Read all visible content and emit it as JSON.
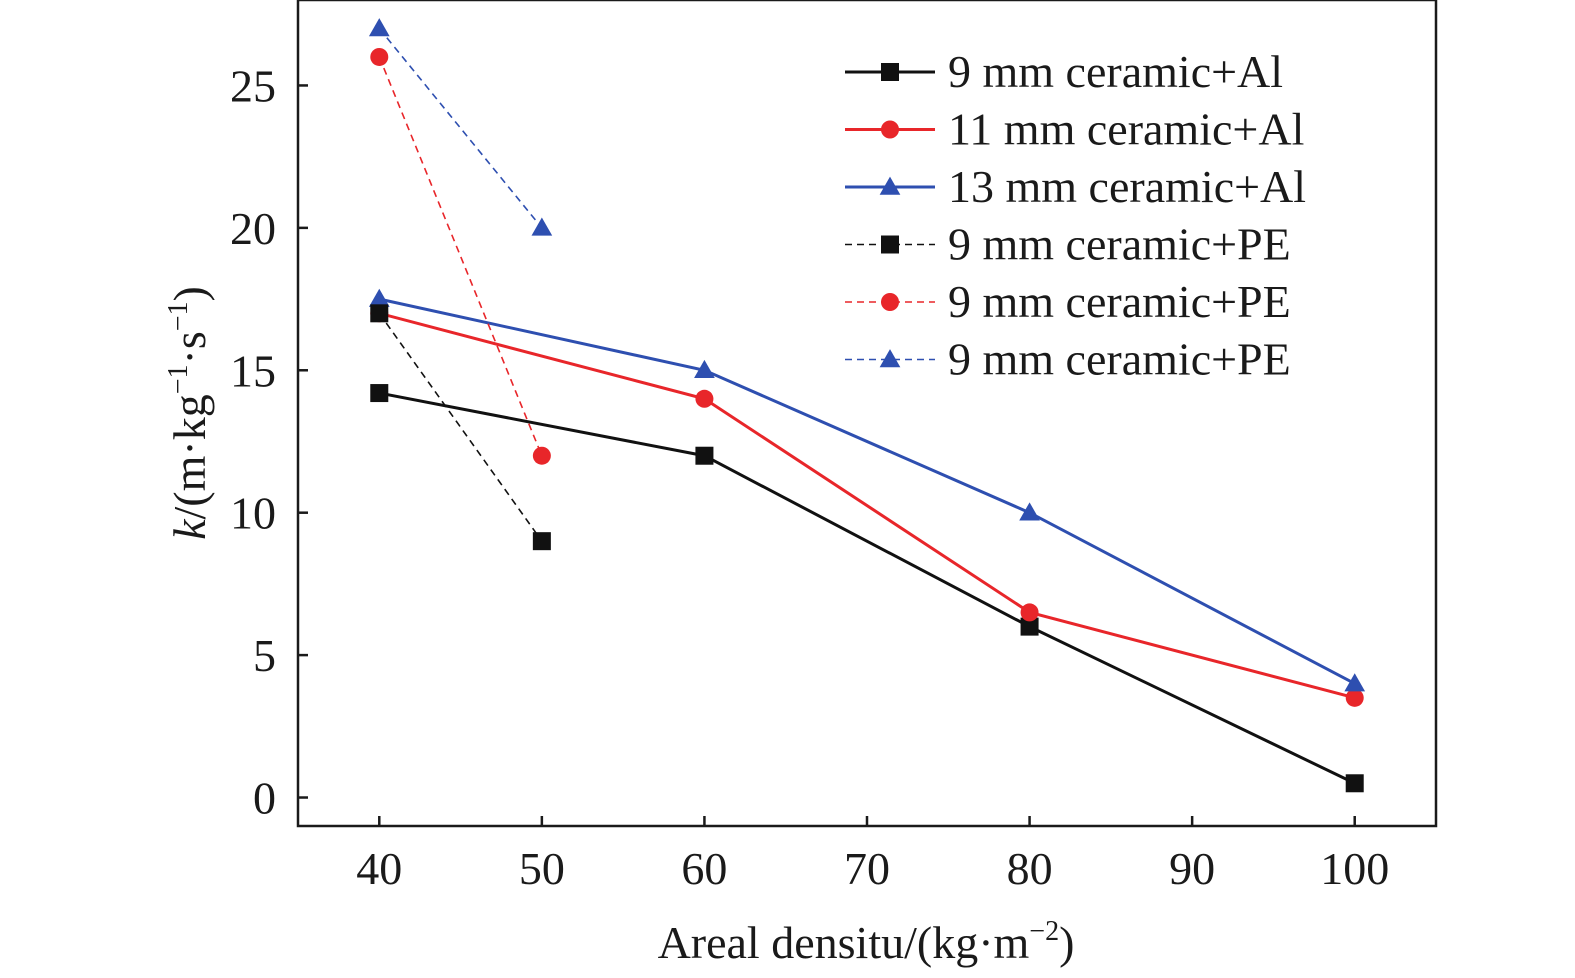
{
  "chart_data": {
    "type": "line",
    "xlabel": "Areal densitu/(kg·m",
    "xlabel_sup": "−2",
    "xlabel_end": ")",
    "ylabel_var": "k",
    "ylabel_unit": "/(m·kg",
    "ylabel_sup1": "−1",
    "ylabel_mid": "·s",
    "ylabel_sup2": "−1",
    "ylabel_end": ")",
    "xlim": [
      35,
      105
    ],
    "ylim": [
      -1,
      28
    ],
    "xticks": [
      40,
      50,
      60,
      70,
      80,
      90,
      100
    ],
    "yticks": [
      0,
      5,
      10,
      15,
      20,
      25
    ],
    "grid": false,
    "legend_position": "top-right",
    "series": [
      {
        "name": "9 mm ceramic+Al",
        "color": "#111111",
        "marker": "square",
        "dashed": false,
        "x": [
          40,
          60,
          80,
          100
        ],
        "y": [
          14.2,
          12,
          6,
          0.5
        ]
      },
      {
        "name": "11 mm ceramic+Al",
        "color": "#e8262a",
        "marker": "circle",
        "dashed": false,
        "x": [
          40,
          60,
          80,
          100
        ],
        "y": [
          17,
          14,
          6.5,
          3.5
        ]
      },
      {
        "name": "13 mm ceramic+Al",
        "color": "#2e4fb0",
        "marker": "triangle",
        "dashed": false,
        "x": [
          40,
          60,
          80,
          100
        ],
        "y": [
          17.5,
          15,
          10,
          4
        ]
      },
      {
        "name": "9 mm ceramic+PE",
        "color": "#111111",
        "marker": "square",
        "dashed": true,
        "x": [
          40,
          50
        ],
        "y": [
          17,
          9
        ]
      },
      {
        "name": "9 mm ceramic+PE",
        "color": "#e8262a",
        "marker": "circle",
        "dashed": true,
        "x": [
          40,
          50
        ],
        "y": [
          26,
          12
        ]
      },
      {
        "name": "9 mm ceramic+PE",
        "color": "#2e4fb0",
        "marker": "triangle",
        "dashed": true,
        "x": [
          40,
          50
        ],
        "y": [
          27,
          20
        ]
      }
    ]
  }
}
